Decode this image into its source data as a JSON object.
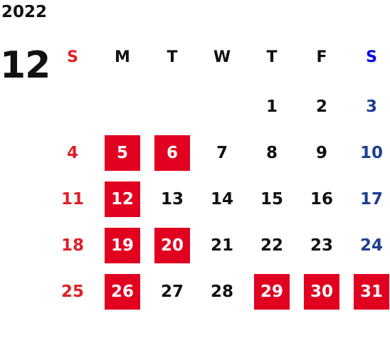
{
  "year": "2022",
  "month": "12",
  "weekdays": [
    "S",
    "M",
    "T",
    "W",
    "T",
    "F",
    "S"
  ],
  "weeks": [
    [
      "",
      "",
      "",
      "",
      "1",
      "2",
      "3"
    ],
    [
      "4",
      "5",
      "6",
      "7",
      "8",
      "9",
      "10"
    ],
    [
      "11",
      "12",
      "13",
      "14",
      "15",
      "16",
      "17"
    ],
    [
      "18",
      "19",
      "20",
      "21",
      "22",
      "23",
      "24"
    ],
    [
      "25",
      "26",
      "27",
      "28",
      "29",
      "30",
      "31"
    ]
  ],
  "highlighted_days": [
    "5",
    "6",
    "12",
    "19",
    "20",
    "26",
    "29",
    "30",
    "31"
  ],
  "colors": {
    "highlight_bg": "#e10020",
    "sunday": "#e01f26",
    "saturday_header": "#0000ee",
    "saturday": "#1e3f8f",
    "default": "#111111"
  }
}
